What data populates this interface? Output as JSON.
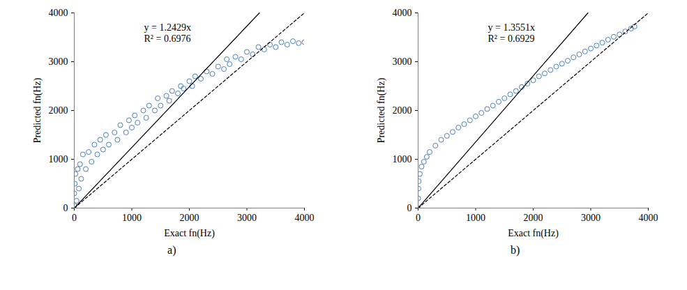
{
  "chart_data": [
    {
      "type": "scatter",
      "caption": "a)",
      "x_label": "Exact fn(Hz)",
      "y_label": "Predicted fn(Hz)",
      "xlim": [
        0,
        4000
      ],
      "ylim": [
        0,
        4000
      ],
      "xticks": [
        0,
        1000,
        2000,
        3000,
        4000
      ],
      "yticks": [
        0,
        1000,
        2000,
        3000,
        4000
      ],
      "grid": false,
      "annotations": [
        "y = 1.2429x",
        "R² = 0.6976"
      ],
      "series": [
        {
          "type": "scatter",
          "color": "#4a7ebb",
          "marker": "circle",
          "x": [
            0,
            0,
            10,
            20,
            40,
            60,
            80,
            100,
            120,
            150,
            200,
            250,
            300,
            350,
            400,
            450,
            500,
            550,
            600,
            700,
            750,
            800,
            900,
            950,
            1000,
            1050,
            1100,
            1200,
            1250,
            1300,
            1400,
            1450,
            1500,
            1600,
            1650,
            1700,
            1800,
            1850,
            1900,
            2000,
            2050,
            2100,
            2200,
            2300,
            2400,
            2500,
            2600,
            2650,
            2700,
            2800,
            2900,
            3000,
            3100,
            3200,
            3300,
            3400,
            3500,
            3600,
            3700,
            3800,
            3900,
            4000
          ],
          "values": [
            50,
            300,
            500,
            700,
            150,
            800,
            400,
            900,
            600,
            1100,
            800,
            1150,
            950,
            1300,
            1100,
            1400,
            1200,
            1500,
            1300,
            1550,
            1400,
            1700,
            1550,
            1800,
            1650,
            1900,
            1750,
            2000,
            1850,
            2100,
            2000,
            2250,
            2100,
            2300,
            2200,
            2400,
            2350,
            2500,
            2450,
            2600,
            2500,
            2700,
            2650,
            2800,
            2750,
            2900,
            2850,
            3050,
            2950,
            3100,
            3050,
            3200,
            3150,
            3300,
            3250,
            3350,
            3300,
            3400,
            3350,
            3420,
            3380,
            3400
          ]
        },
        {
          "type": "line",
          "color": "#000000",
          "line_style": "solid",
          "x": [
            0,
            3218
          ],
          "values": [
            0,
            4000
          ]
        },
        {
          "type": "line",
          "color": "#000000",
          "line_style": "dashed",
          "x": [
            0,
            4000
          ],
          "values": [
            0,
            4000
          ]
        }
      ]
    },
    {
      "type": "scatter",
      "caption": "b)",
      "x_label": "Exact fn(Hz)",
      "y_label": "Predicted fn(Hz)",
      "xlim": [
        0,
        4000
      ],
      "ylim": [
        0,
        4000
      ],
      "xticks": [
        0,
        1000,
        2000,
        3000,
        4000
      ],
      "yticks": [
        0,
        1000,
        2000,
        3000,
        4000
      ],
      "grid": false,
      "annotations": [
        "y = 1.3551x",
        "R² = 0.6929"
      ],
      "series": [
        {
          "type": "scatter",
          "color": "#4a7ebb",
          "marker": "circle",
          "x": [
            0,
            0,
            5,
            10,
            30,
            60,
            100,
            150,
            200,
            300,
            400,
            500,
            600,
            700,
            800,
            900,
            1000,
            1100,
            1200,
            1300,
            1400,
            1500,
            1600,
            1700,
            1800,
            1900,
            2000,
            2100,
            2200,
            2300,
            2400,
            2500,
            2600,
            2700,
            2800,
            2900,
            3000,
            3100,
            3200,
            3300,
            3400,
            3500,
            3600,
            3700,
            3760
          ],
          "values": [
            0,
            200,
            400,
            550,
            700,
            850,
            950,
            1050,
            1150,
            1280,
            1400,
            1480,
            1560,
            1650,
            1720,
            1800,
            1880,
            1950,
            2030,
            2100,
            2180,
            2250,
            2330,
            2400,
            2480,
            2550,
            2620,
            2700,
            2760,
            2830,
            2900,
            2960,
            3020,
            3090,
            3150,
            3210,
            3270,
            3330,
            3390,
            3450,
            3510,
            3560,
            3620,
            3680,
            3720
          ]
        },
        {
          "type": "line",
          "color": "#000000",
          "line_style": "solid",
          "x": [
            0,
            2952
          ],
          "values": [
            0,
            4000
          ]
        },
        {
          "type": "line",
          "color": "#000000",
          "line_style": "dashed",
          "x": [
            0,
            4000
          ],
          "values": [
            0,
            4000
          ]
        }
      ]
    }
  ]
}
